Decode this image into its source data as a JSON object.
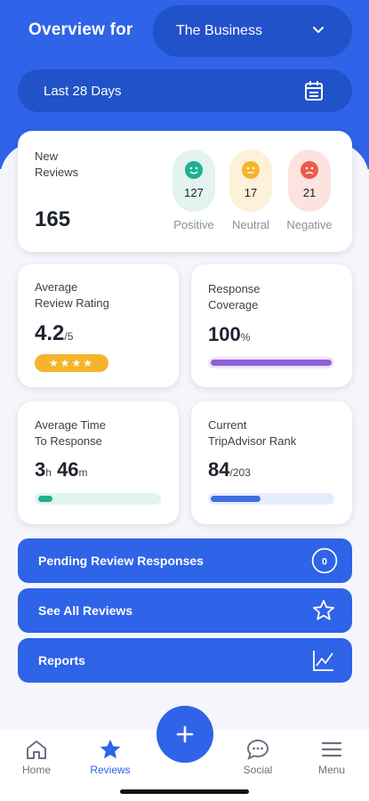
{
  "header": {
    "title": "Overview for",
    "business": "The Business",
    "date_range": "Last 28 Days"
  },
  "reviews_card": {
    "label": "New\nReviews",
    "total": "165",
    "positive": {
      "count": "127",
      "label": "Positive",
      "color": "#e3f3ef"
    },
    "neutral": {
      "count": "17",
      "label": "Neutral",
      "color": "#fdf1d9"
    },
    "negative": {
      "count": "21",
      "label": "Negative",
      "color": "#fde3df"
    }
  },
  "rating_card": {
    "label": "Average\nReview Rating",
    "value": "4.2",
    "unit": "/5",
    "stars": "★★★★"
  },
  "coverage_card": {
    "label": "Response\nCoverage",
    "value": "100",
    "unit": "%",
    "fraction": 1.0
  },
  "time_card": {
    "label": "Average Time\nTo Response",
    "hours": "3",
    "h_unit": "h",
    "minutes": "46",
    "m_unit": "m",
    "fraction": 0.12
  },
  "rank_card": {
    "label": "Current\nTripAdvisor Rank",
    "value": "84",
    "unit": "/203",
    "fraction": 0.41
  },
  "actions": {
    "pending": {
      "label": "Pending Review Responses",
      "badge": "0"
    },
    "see_all": {
      "label": "See All Reviews"
    },
    "reports": {
      "label": "Reports"
    }
  },
  "tabs": {
    "home": "Home",
    "reviews": "Reviews",
    "social": "Social",
    "menu": "Menu"
  },
  "colors": {
    "primary": "#2f63e8",
    "dark_primary": "#2252c9",
    "star_badge": "#f4b52c",
    "coverage_bar": "#8e5fd6",
    "time_bar": "#1fb08f",
    "rank_bar": "#3d6fe0"
  }
}
